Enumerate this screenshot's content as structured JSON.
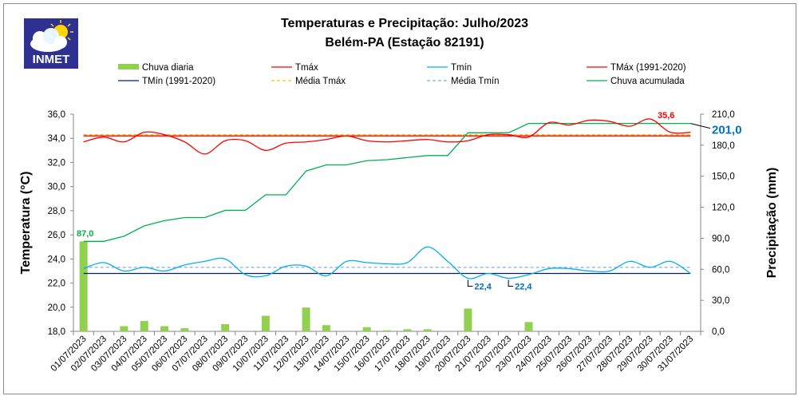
{
  "chart_data": {
    "type": "line",
    "title": "Temperaturas e Precipitação: Julho/2023",
    "subtitle": "Belém-PA (Estação 82191)",
    "logo_text": "INMET",
    "ylabel": "Temperatura (°C)",
    "y2label": "Precipitação (mm)",
    "ylim": [
      18,
      36
    ],
    "y2lim": [
      0,
      210
    ],
    "yticks": [
      "18,0",
      "20,0",
      "22,0",
      "24,0",
      "26,0",
      "28,0",
      "30,0",
      "32,0",
      "34,0",
      "36,0"
    ],
    "y2ticks": [
      "0,0",
      "30,0",
      "60,0",
      "90,0",
      "120,0",
      "150,0",
      "180,0",
      "210,0"
    ],
    "categories": [
      "01/07/2023",
      "02/07/2023",
      "03/07/2023",
      "04/07/2023",
      "05/07/2023",
      "06/07/2023",
      "07/07/2023",
      "08/07/2023",
      "09/07/2023",
      "10/07/2023",
      "11/07/2023",
      "12/07/2023",
      "13/07/2023",
      "14/07/2023",
      "15/07/2023",
      "16/07/2023",
      "17/07/2023",
      "18/07/2023",
      "19/07/2023",
      "20/07/2023",
      "21/07/2023",
      "22/07/2023",
      "23/07/2023",
      "24/07/2023",
      "25/07/2023",
      "26/07/2023",
      "27/07/2023",
      "28/07/2023",
      "29/07/2023",
      "30/07/2023",
      "31/07/2023"
    ],
    "series": [
      {
        "name": "Chuva diaria",
        "kind": "bar",
        "axis": "right",
        "color": "#92d050",
        "values": [
          87,
          0,
          5,
          10,
          5,
          3,
          0,
          7,
          0,
          15,
          0,
          23,
          6,
          0,
          4,
          1,
          2,
          2,
          0,
          22,
          0,
          0,
          9,
          0,
          0,
          0,
          0,
          0,
          0,
          0,
          0
        ]
      },
      {
        "name": "Tmáx",
        "kind": "line",
        "axis": "left",
        "color": "#ff0000",
        "values": [
          33.7,
          34.1,
          33.7,
          34.5,
          34.3,
          33.7,
          32.7,
          33.8,
          33.8,
          33.0,
          33.6,
          33.7,
          33.9,
          34.2,
          33.8,
          33.7,
          33.8,
          33.9,
          33.7,
          33.8,
          34.3,
          34.3,
          34.1,
          35.3,
          35.1,
          35.5,
          35.4,
          35.0,
          35.6,
          34.5,
          34.5
        ]
      },
      {
        "name": "Tmín",
        "kind": "line",
        "axis": "left",
        "color": "#00b0f0",
        "values": [
          23.2,
          23.7,
          23.0,
          23.3,
          23.0,
          23.5,
          23.8,
          24.0,
          22.7,
          22.6,
          23.4,
          23.4,
          22.6,
          23.8,
          23.7,
          23.6,
          23.7,
          25.0,
          23.8,
          22.4,
          22.8,
          22.4,
          22.7,
          23.2,
          23.2,
          23.0,
          23.0,
          23.8,
          23.3,
          23.8,
          22.8
        ]
      },
      {
        "name": "TMáx (1991-2020)",
        "kind": "hline",
        "axis": "left",
        "color": "#ff0000",
        "value": 34.2
      },
      {
        "name": "TMín (1991-2020)",
        "kind": "hline",
        "axis": "left",
        "color": "#002060",
        "value": 22.8
      },
      {
        "name": "Média Tmáx",
        "kind": "hline-dash",
        "axis": "left",
        "color": "#ffc000",
        "value": 34.3
      },
      {
        "name": "Média Tmín",
        "kind": "hline-dash",
        "axis": "left",
        "color": "#8faadc",
        "value": 23.3
      },
      {
        "name": "Chuva acumulada",
        "kind": "cumline",
        "axis": "right",
        "color": "#00b050"
      }
    ],
    "legend_order": [
      "Chuva diaria",
      "Tmáx",
      "Tmín",
      "TMáx (1991-2020)",
      "TMín (1991-2020)",
      "Média Tmáx",
      "Média Tmín",
      "Chuva acumulada"
    ],
    "annotations": [
      {
        "text": "87,0",
        "day": 1,
        "color": "#00b050"
      },
      {
        "text": "35,6",
        "day": 29,
        "color": "#ff0000"
      },
      {
        "text": "22,4",
        "day": 20,
        "color": "#0070c0"
      },
      {
        "text": "22,4",
        "day": 22,
        "color": "#0070c0"
      },
      {
        "text": "201,0",
        "day": 31,
        "color": "#0070c0"
      }
    ],
    "legend": "top"
  }
}
